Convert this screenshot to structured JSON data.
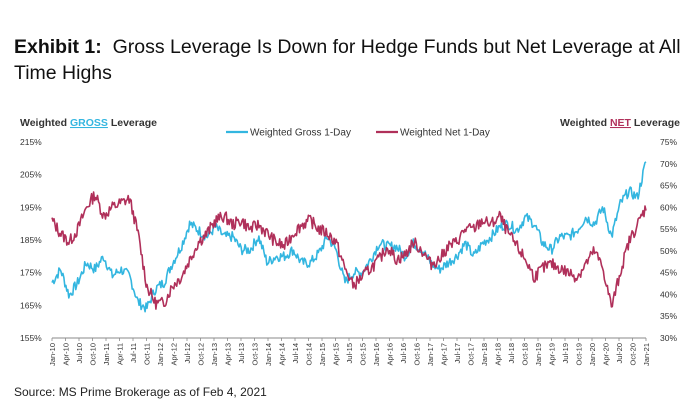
{
  "header": {
    "exhibit_label": "Exhibit 1:",
    "title": "Gross Leverage Is Down for Hedge Funds but Net Leverage at All Time Highs"
  },
  "source_note": "Source: MS Prime Brokerage as of Feb 4, 2021",
  "colors": {
    "gross": "#33b6e0",
    "net": "#b0305a",
    "axis": "#8a8a8a",
    "text": "#333333"
  },
  "chart_data": {
    "type": "line",
    "left_axis_title": {
      "prefix": "Weighted ",
      "highlight": "GROSS",
      "suffix": " Leverage"
    },
    "right_axis_title": {
      "prefix": "Weighted ",
      "highlight": "NET",
      "suffix": " Leverage"
    },
    "left_ylim": [
      155,
      215
    ],
    "left_ticks": [
      "155%",
      "165%",
      "175%",
      "185%",
      "195%",
      "205%",
      "215%"
    ],
    "right_ylim": [
      30,
      75
    ],
    "right_ticks": [
      "30%",
      "35%",
      "40%",
      "45%",
      "50%",
      "55%",
      "60%",
      "65%",
      "70%",
      "75%"
    ],
    "x_ticks": [
      "Jan-10",
      "Apr-10",
      "Jul-10",
      "Oct-10",
      "Jan-11",
      "Apr-11",
      "Jul-11",
      "Oct-11",
      "Jan-12",
      "Apr-12",
      "Jul-12",
      "Oct-12",
      "Jan-13",
      "Apr-13",
      "Jul-13",
      "Oct-13",
      "Jan-14",
      "Apr-14",
      "Jul-14",
      "Oct-14",
      "Jan-15",
      "Apr-15",
      "Jul-15",
      "Oct-15",
      "Jan-16",
      "Apr-16",
      "Jul-16",
      "Oct-16",
      "Jan-17",
      "Apr-17",
      "Jul-17",
      "Oct-17",
      "Jan-18",
      "Apr-18",
      "Jul-18",
      "Oct-18",
      "Jan-19",
      "Apr-19",
      "Jul-19",
      "Oct-19",
      "Jan-20",
      "Apr-20",
      "Jul-20",
      "Oct-20",
      "Jan-21"
    ],
    "legend_position": "top-center",
    "series": [
      {
        "name": "Weighted Gross 1-Day",
        "axis": "left",
        "values": [
          172,
          176,
          168,
          172,
          178,
          176,
          180,
          174,
          176,
          174,
          166,
          164,
          170,
          172,
          178,
          183,
          190,
          188,
          186,
          189,
          186,
          186,
          182,
          182,
          186,
          178,
          180,
          180,
          182,
          178,
          178,
          181,
          186,
          182,
          172,
          175,
          175,
          179,
          184,
          183,
          183,
          180,
          184,
          182,
          178,
          176,
          178,
          180,
          184,
          180,
          184,
          186,
          189,
          190,
          188,
          192,
          190,
          184,
          182,
          186,
          186,
          188,
          192,
          190,
          195,
          186,
          196,
          200,
          198,
          209
        ]
      },
      {
        "name": "Weighted Net 1-Day",
        "axis": "right",
        "values": [
          57,
          54,
          52,
          55,
          60,
          63,
          58,
          60,
          61,
          62,
          54,
          42,
          38,
          38,
          42,
          44,
          48,
          52,
          54,
          57,
          58,
          56,
          57,
          55,
          56,
          54,
          52,
          51,
          54,
          56,
          57,
          55,
          54,
          52,
          46,
          42,
          44,
          46,
          48,
          51,
          48,
          49,
          52,
          50,
          47,
          48,
          51,
          52,
          55,
          55,
          57,
          56,
          58,
          54,
          51,
          48,
          44,
          46,
          47,
          46,
          45,
          44,
          47,
          50,
          46,
          37,
          45,
          52,
          56,
          60
        ]
      }
    ]
  }
}
